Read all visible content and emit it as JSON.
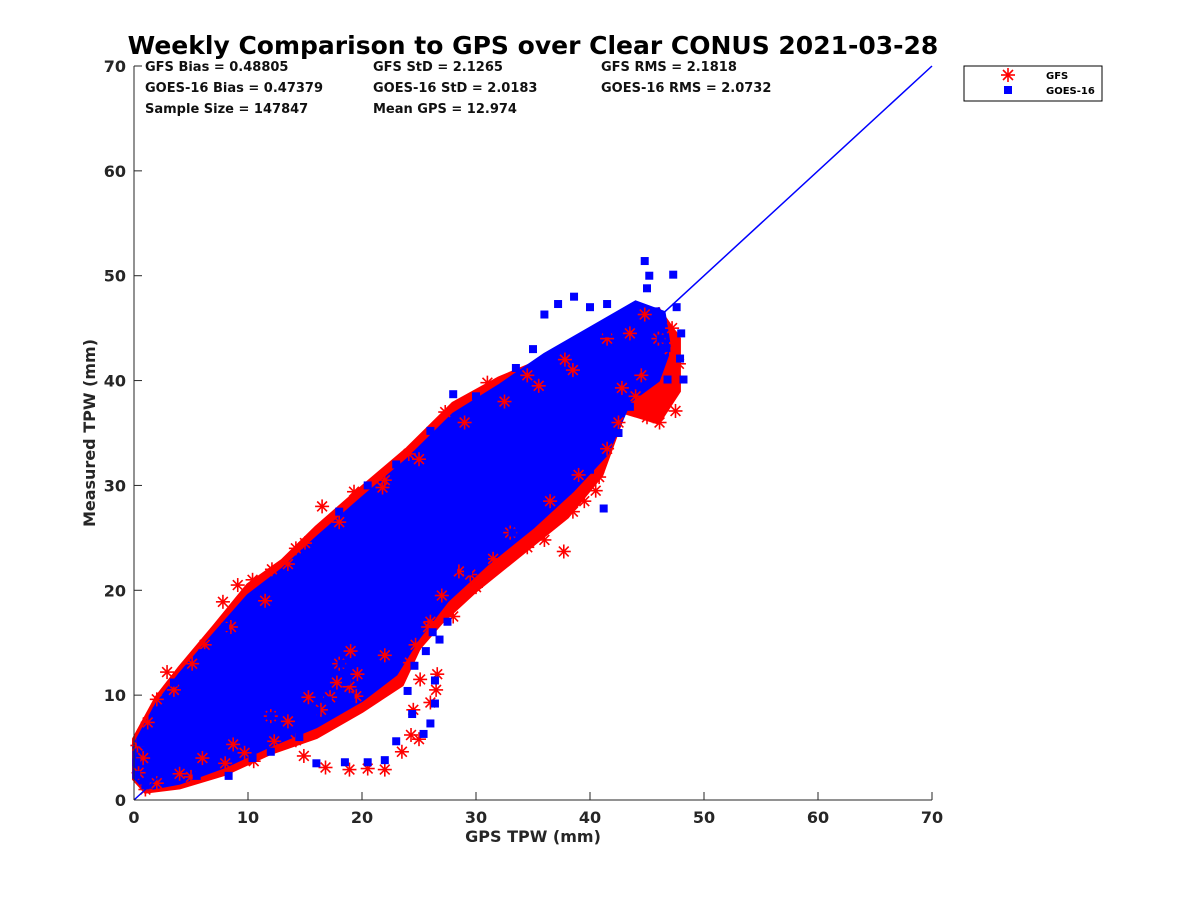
{
  "title": "Weekly Comparison to GPS over Clear CONUS 2021-03-28",
  "stats": {
    "gfs_bias": "GFS Bias = 0.48805",
    "goes_bias": "GOES-16 Bias = 0.47379",
    "sample_size": "Sample Size = 147847",
    "gfs_std": "GFS StD = 2.1265",
    "goes_std": "GOES-16 StD = 2.0183",
    "mean_gps": "Mean GPS = 12.974",
    "gfs_rms": "GFS RMS = 2.1818",
    "goes_rms": "GOES-16 RMS = 2.0732"
  },
  "legend": {
    "gfs": "GFS",
    "goes": "GOES-16"
  },
  "chart_data": {
    "type": "scatter",
    "title": "Weekly Comparison to GPS over Clear CONUS 2021-03-28",
    "xlabel": "GPS TPW (mm)",
    "ylabel": "Measured TPW (mm)",
    "xlim": [
      0,
      70
    ],
    "ylim": [
      0,
      70
    ],
    "xticks": [
      0,
      10,
      20,
      30,
      40,
      50,
      60,
      70
    ],
    "yticks": [
      0,
      10,
      20,
      30,
      40,
      50,
      60,
      70
    ],
    "grid": false,
    "legend_position": "outside-top-right",
    "colors": {
      "gfs": "#ff0000",
      "goes": "#0000ff",
      "one_to_one": "#0000ff"
    },
    "reference_line": {
      "name": "1:1",
      "x": [
        0,
        70
      ],
      "y": [
        0,
        70
      ]
    },
    "series": [
      {
        "name": "GFS",
        "marker": "asterisk",
        "color": "#ff0000",
        "points": [
          [
            0.3,
            5.2
          ],
          [
            1.2,
            7.4
          ],
          [
            2.0,
            9.6
          ],
          [
            2.9,
            12.2
          ],
          [
            5.1,
            13.0
          ],
          [
            7.8,
            18.9
          ],
          [
            9.1,
            20.5
          ],
          [
            10.4,
            21.0
          ],
          [
            12.1,
            22.0
          ],
          [
            14.2,
            24.0
          ],
          [
            16.5,
            28.0
          ],
          [
            19.3,
            29.4
          ],
          [
            21.8,
            29.8
          ],
          [
            24.1,
            33.0
          ],
          [
            27.3,
            37.0
          ],
          [
            31.0,
            39.8
          ],
          [
            34.5,
            40.5
          ],
          [
            37.8,
            42.0
          ],
          [
            41.5,
            44.0
          ],
          [
            44.8,
            46.3
          ],
          [
            47.2,
            45.0
          ],
          [
            47.0,
            43.0
          ],
          [
            47.8,
            41.6
          ],
          [
            47.5,
            37.1
          ],
          [
            46.1,
            36.0
          ],
          [
            45.0,
            36.5
          ],
          [
            44.0,
            38.5
          ],
          [
            42.8,
            39.3
          ],
          [
            41.5,
            33.5
          ],
          [
            40.8,
            30.8
          ],
          [
            40.5,
            29.5
          ],
          [
            39.5,
            28.5
          ],
          [
            38.5,
            27.5
          ],
          [
            37.7,
            23.7
          ],
          [
            36.0,
            24.8
          ],
          [
            34.5,
            24.1
          ],
          [
            32.0,
            22.5
          ],
          [
            30.0,
            20.3
          ],
          [
            28.5,
            21.8
          ],
          [
            27.0,
            19.5
          ],
          [
            25.8,
            16.5
          ],
          [
            24.7,
            14.8
          ],
          [
            24.2,
            13.1
          ],
          [
            25.1,
            11.5
          ],
          [
            26.6,
            12.0
          ],
          [
            26.5,
            10.5
          ],
          [
            26.0,
            9.3
          ],
          [
            24.5,
            8.6
          ],
          [
            24.3,
            6.2
          ],
          [
            25.0,
            5.8
          ],
          [
            23.5,
            4.6
          ],
          [
            22.0,
            2.9
          ],
          [
            20.5,
            3.0
          ],
          [
            18.9,
            2.9
          ],
          [
            16.8,
            3.1
          ],
          [
            14.9,
            4.2
          ],
          [
            14.2,
            5.7
          ],
          [
            13.5,
            7.5
          ],
          [
            12.3,
            5.6
          ],
          [
            10.5,
            3.7
          ],
          [
            9.7,
            4.5
          ],
          [
            8.7,
            5.3
          ],
          [
            19.5,
            9.9
          ],
          [
            18.9,
            10.8
          ],
          [
            19.0,
            14.2
          ],
          [
            19.6,
            12.0
          ],
          [
            18.0,
            13.0
          ],
          [
            17.8,
            11.2
          ],
          [
            17.2,
            9.8
          ],
          [
            16.4,
            8.6
          ],
          [
            15.3,
            9.8
          ],
          [
            22.0,
            13.8
          ],
          [
            26.0,
            17.0
          ],
          [
            29.5,
            21.5
          ],
          [
            33.0,
            25.5
          ],
          [
            36.5,
            28.5
          ],
          [
            39.0,
            31.0
          ],
          [
            42.5,
            36.0
          ],
          [
            44.5,
            40.5
          ],
          [
            6.0,
            4.0
          ],
          [
            4.0,
            2.5
          ],
          [
            2.0,
            1.6
          ],
          [
            1.0,
            1.0
          ],
          [
            0.4,
            2.6
          ],
          [
            0.8,
            4.0
          ],
          [
            3.5,
            10.5
          ],
          [
            6.2,
            14.8
          ],
          [
            8.5,
            16.5
          ],
          [
            11.5,
            19.0
          ],
          [
            13.5,
            22.5
          ],
          [
            15.0,
            24.5
          ],
          [
            18.0,
            26.5
          ],
          [
            22.0,
            30.5
          ],
          [
            25.0,
            32.5
          ],
          [
            29.0,
            36.0
          ],
          [
            32.5,
            38.0
          ],
          [
            35.5,
            39.5
          ],
          [
            38.5,
            41.0
          ],
          [
            43.5,
            44.5
          ],
          [
            46.0,
            44.0
          ],
          [
            12.0,
            8.0
          ],
          [
            8.0,
            3.5
          ],
          [
            5.0,
            2.2
          ],
          [
            28.0,
            17.5
          ],
          [
            31.5,
            23.0
          ]
        ]
      },
      {
        "name": "GOES-16",
        "marker": "square",
        "color": "#0000ff",
        "points": [
          [
            44.8,
            51.4
          ],
          [
            45.2,
            50.0
          ],
          [
            47.3,
            50.1
          ],
          [
            45.0,
            48.8
          ],
          [
            41.5,
            47.3
          ],
          [
            37.2,
            47.3
          ],
          [
            36.0,
            46.3
          ],
          [
            38.6,
            48.0
          ],
          [
            40.0,
            47.0
          ],
          [
            45.8,
            46.6
          ],
          [
            47.6,
            47.0
          ],
          [
            46.2,
            44.0
          ],
          [
            46.7,
            43.1
          ],
          [
            47.9,
            42.1
          ],
          [
            48.2,
            40.1
          ],
          [
            46.8,
            40.1
          ],
          [
            48.0,
            44.5
          ],
          [
            33.5,
            41.2
          ],
          [
            35.0,
            43.0
          ],
          [
            30.0,
            38.5
          ],
          [
            28.0,
            38.7
          ],
          [
            26.0,
            35.2
          ],
          [
            23.0,
            32.0
          ],
          [
            20.5,
            30.0
          ],
          [
            18.0,
            27.5
          ],
          [
            15.0,
            23.5
          ],
          [
            12.5,
            21.0
          ],
          [
            10.0,
            18.5
          ],
          [
            8.0,
            16.5
          ],
          [
            6.0,
            14.0
          ],
          [
            3.5,
            11.2
          ],
          [
            2.0,
            8.5
          ],
          [
            0.6,
            5.5
          ],
          [
            0.2,
            3.6
          ],
          [
            0.2,
            2.4
          ],
          [
            1.0,
            1.4
          ],
          [
            3.0,
            1.8
          ],
          [
            5.5,
            2.3
          ],
          [
            8.3,
            2.3
          ],
          [
            10.4,
            4.0
          ],
          [
            12.0,
            4.6
          ],
          [
            14.5,
            6.0
          ],
          [
            16.0,
            3.5
          ],
          [
            18.5,
            3.6
          ],
          [
            20.5,
            3.6
          ],
          [
            22.0,
            3.8
          ],
          [
            23.0,
            5.6
          ],
          [
            25.4,
            6.3
          ],
          [
            24.4,
            8.2
          ],
          [
            26.0,
            7.3
          ],
          [
            26.4,
            9.2
          ],
          [
            24.0,
            10.4
          ],
          [
            26.4,
            11.4
          ],
          [
            24.6,
            12.8
          ],
          [
            25.6,
            14.2
          ],
          [
            26.2,
            16.0
          ],
          [
            27.5,
            17.0
          ],
          [
            26.8,
            15.3
          ],
          [
            29.3,
            21.8
          ],
          [
            30.7,
            22.8
          ],
          [
            33.2,
            25.5
          ],
          [
            35.5,
            27.5
          ],
          [
            38.0,
            29.5
          ],
          [
            40.0,
            31.5
          ],
          [
            41.2,
            27.8
          ],
          [
            42.5,
            35.0
          ],
          [
            43.5,
            37.5
          ],
          [
            19.0,
            9.8
          ],
          [
            18.6,
            11.3
          ],
          [
            18.2,
            13.0
          ],
          [
            17.0,
            9.5
          ],
          [
            16.0,
            8.5
          ],
          [
            15.0,
            11.0
          ],
          [
            14.0,
            10.0
          ],
          [
            13.0,
            9.0
          ],
          [
            12.0,
            8.0
          ],
          [
            22.0,
            16.0
          ],
          [
            24.0,
            18.0
          ],
          [
            28.0,
            22.0
          ],
          [
            31.0,
            26.0
          ],
          [
            34.0,
            30.0
          ],
          [
            37.0,
            32.0
          ],
          [
            40.0,
            35.0
          ],
          [
            42.0,
            38.0
          ],
          [
            44.0,
            41.0
          ],
          [
            4.5,
            6.5
          ],
          [
            7.0,
            9.0
          ],
          [
            9.5,
            12.0
          ],
          [
            11.0,
            14.5
          ],
          [
            13.5,
            17.0
          ],
          [
            16.0,
            20.5
          ],
          [
            19.0,
            23.5
          ],
          [
            21.5,
            26.5
          ],
          [
            24.5,
            29.5
          ],
          [
            27.5,
            32.5
          ],
          [
            30.5,
            35.0
          ],
          [
            33.5,
            37.5
          ],
          [
            36.5,
            40.0
          ],
          [
            39.0,
            42.5
          ],
          [
            41.5,
            44.5
          ]
        ]
      }
    ]
  }
}
